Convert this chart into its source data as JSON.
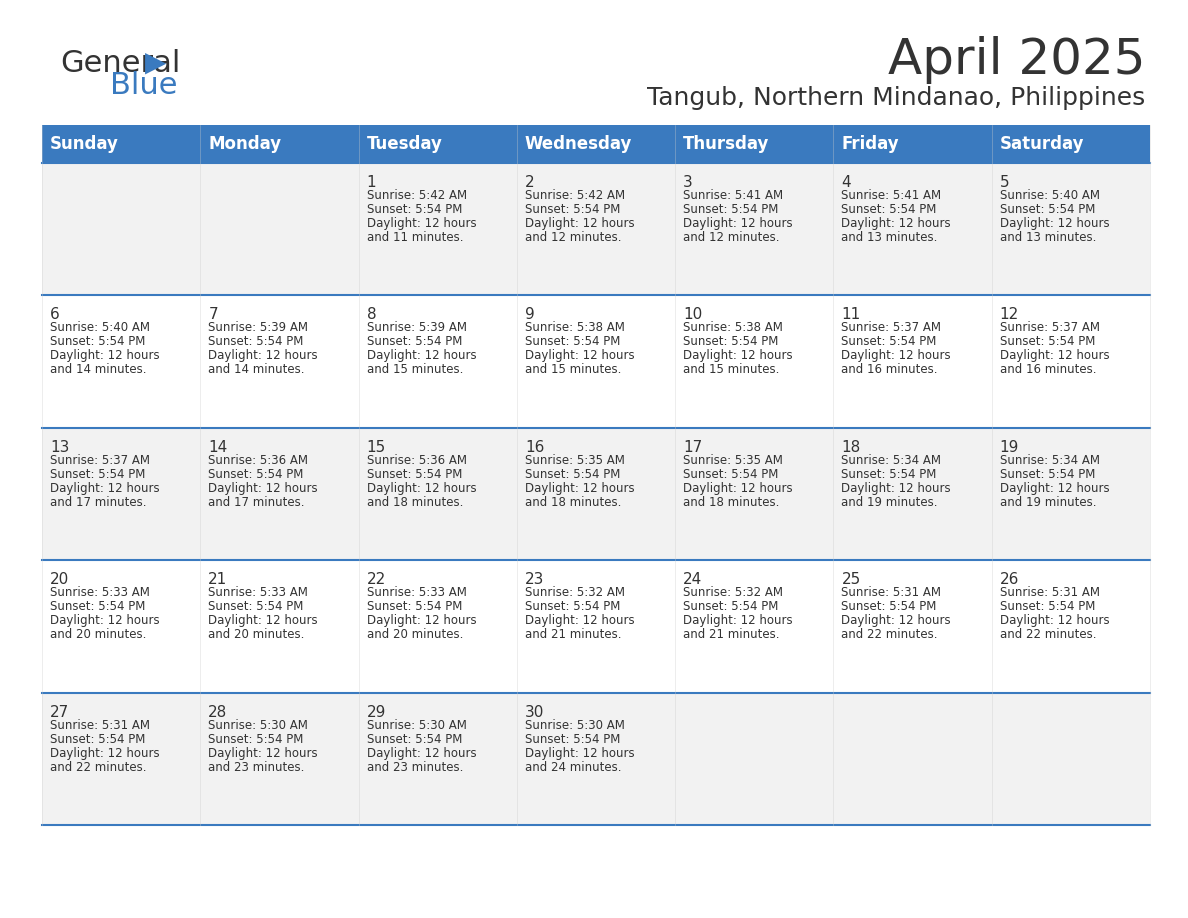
{
  "title": "April 2025",
  "subtitle": "Tangub, Northern Mindanao, Philippines",
  "header_bg": "#3a7abf",
  "header_text_color": "#ffffff",
  "days_of_week": [
    "Sunday",
    "Monday",
    "Tuesday",
    "Wednesday",
    "Thursday",
    "Friday",
    "Saturday"
  ],
  "row_bg_even": "#f2f2f2",
  "row_bg_odd": "#ffffff",
  "border_color": "#3a7abf",
  "cell_text_color": "#333333",
  "calendar": [
    [
      {
        "day": "",
        "sunrise": "",
        "sunset": "",
        "daylight": ""
      },
      {
        "day": "",
        "sunrise": "",
        "sunset": "",
        "daylight": ""
      },
      {
        "day": "1",
        "sunrise": "Sunrise: 5:42 AM",
        "sunset": "Sunset: 5:54 PM",
        "daylight": "Daylight: 12 hours\nand 11 minutes."
      },
      {
        "day": "2",
        "sunrise": "Sunrise: 5:42 AM",
        "sunset": "Sunset: 5:54 PM",
        "daylight": "Daylight: 12 hours\nand 12 minutes."
      },
      {
        "day": "3",
        "sunrise": "Sunrise: 5:41 AM",
        "sunset": "Sunset: 5:54 PM",
        "daylight": "Daylight: 12 hours\nand 12 minutes."
      },
      {
        "day": "4",
        "sunrise": "Sunrise: 5:41 AM",
        "sunset": "Sunset: 5:54 PM",
        "daylight": "Daylight: 12 hours\nand 13 minutes."
      },
      {
        "day": "5",
        "sunrise": "Sunrise: 5:40 AM",
        "sunset": "Sunset: 5:54 PM",
        "daylight": "Daylight: 12 hours\nand 13 minutes."
      }
    ],
    [
      {
        "day": "6",
        "sunrise": "Sunrise: 5:40 AM",
        "sunset": "Sunset: 5:54 PM",
        "daylight": "Daylight: 12 hours\nand 14 minutes."
      },
      {
        "day": "7",
        "sunrise": "Sunrise: 5:39 AM",
        "sunset": "Sunset: 5:54 PM",
        "daylight": "Daylight: 12 hours\nand 14 minutes."
      },
      {
        "day": "8",
        "sunrise": "Sunrise: 5:39 AM",
        "sunset": "Sunset: 5:54 PM",
        "daylight": "Daylight: 12 hours\nand 15 minutes."
      },
      {
        "day": "9",
        "sunrise": "Sunrise: 5:38 AM",
        "sunset": "Sunset: 5:54 PM",
        "daylight": "Daylight: 12 hours\nand 15 minutes."
      },
      {
        "day": "10",
        "sunrise": "Sunrise: 5:38 AM",
        "sunset": "Sunset: 5:54 PM",
        "daylight": "Daylight: 12 hours\nand 15 minutes."
      },
      {
        "day": "11",
        "sunrise": "Sunrise: 5:37 AM",
        "sunset": "Sunset: 5:54 PM",
        "daylight": "Daylight: 12 hours\nand 16 minutes."
      },
      {
        "day": "12",
        "sunrise": "Sunrise: 5:37 AM",
        "sunset": "Sunset: 5:54 PM",
        "daylight": "Daylight: 12 hours\nand 16 minutes."
      }
    ],
    [
      {
        "day": "13",
        "sunrise": "Sunrise: 5:37 AM",
        "sunset": "Sunset: 5:54 PM",
        "daylight": "Daylight: 12 hours\nand 17 minutes."
      },
      {
        "day": "14",
        "sunrise": "Sunrise: 5:36 AM",
        "sunset": "Sunset: 5:54 PM",
        "daylight": "Daylight: 12 hours\nand 17 minutes."
      },
      {
        "day": "15",
        "sunrise": "Sunrise: 5:36 AM",
        "sunset": "Sunset: 5:54 PM",
        "daylight": "Daylight: 12 hours\nand 18 minutes."
      },
      {
        "day": "16",
        "sunrise": "Sunrise: 5:35 AM",
        "sunset": "Sunset: 5:54 PM",
        "daylight": "Daylight: 12 hours\nand 18 minutes."
      },
      {
        "day": "17",
        "sunrise": "Sunrise: 5:35 AM",
        "sunset": "Sunset: 5:54 PM",
        "daylight": "Daylight: 12 hours\nand 18 minutes."
      },
      {
        "day": "18",
        "sunrise": "Sunrise: 5:34 AM",
        "sunset": "Sunset: 5:54 PM",
        "daylight": "Daylight: 12 hours\nand 19 minutes."
      },
      {
        "day": "19",
        "sunrise": "Sunrise: 5:34 AM",
        "sunset": "Sunset: 5:54 PM",
        "daylight": "Daylight: 12 hours\nand 19 minutes."
      }
    ],
    [
      {
        "day": "20",
        "sunrise": "Sunrise: 5:33 AM",
        "sunset": "Sunset: 5:54 PM",
        "daylight": "Daylight: 12 hours\nand 20 minutes."
      },
      {
        "day": "21",
        "sunrise": "Sunrise: 5:33 AM",
        "sunset": "Sunset: 5:54 PM",
        "daylight": "Daylight: 12 hours\nand 20 minutes."
      },
      {
        "day": "22",
        "sunrise": "Sunrise: 5:33 AM",
        "sunset": "Sunset: 5:54 PM",
        "daylight": "Daylight: 12 hours\nand 20 minutes."
      },
      {
        "day": "23",
        "sunrise": "Sunrise: 5:32 AM",
        "sunset": "Sunset: 5:54 PM",
        "daylight": "Daylight: 12 hours\nand 21 minutes."
      },
      {
        "day": "24",
        "sunrise": "Sunrise: 5:32 AM",
        "sunset": "Sunset: 5:54 PM",
        "daylight": "Daylight: 12 hours\nand 21 minutes."
      },
      {
        "day": "25",
        "sunrise": "Sunrise: 5:31 AM",
        "sunset": "Sunset: 5:54 PM",
        "daylight": "Daylight: 12 hours\nand 22 minutes."
      },
      {
        "day": "26",
        "sunrise": "Sunrise: 5:31 AM",
        "sunset": "Sunset: 5:54 PM",
        "daylight": "Daylight: 12 hours\nand 22 minutes."
      }
    ],
    [
      {
        "day": "27",
        "sunrise": "Sunrise: 5:31 AM",
        "sunset": "Sunset: 5:54 PM",
        "daylight": "Daylight: 12 hours\nand 22 minutes."
      },
      {
        "day": "28",
        "sunrise": "Sunrise: 5:30 AM",
        "sunset": "Sunset: 5:54 PM",
        "daylight": "Daylight: 12 hours\nand 23 minutes."
      },
      {
        "day": "29",
        "sunrise": "Sunrise: 5:30 AM",
        "sunset": "Sunset: 5:54 PM",
        "daylight": "Daylight: 12 hours\nand 23 minutes."
      },
      {
        "day": "30",
        "sunrise": "Sunrise: 5:30 AM",
        "sunset": "Sunset: 5:54 PM",
        "daylight": "Daylight: 12 hours\nand 24 minutes."
      },
      {
        "day": "",
        "sunrise": "",
        "sunset": "",
        "daylight": ""
      },
      {
        "day": "",
        "sunrise": "",
        "sunset": "",
        "daylight": ""
      },
      {
        "day": "",
        "sunrise": "",
        "sunset": "",
        "daylight": ""
      }
    ]
  ]
}
